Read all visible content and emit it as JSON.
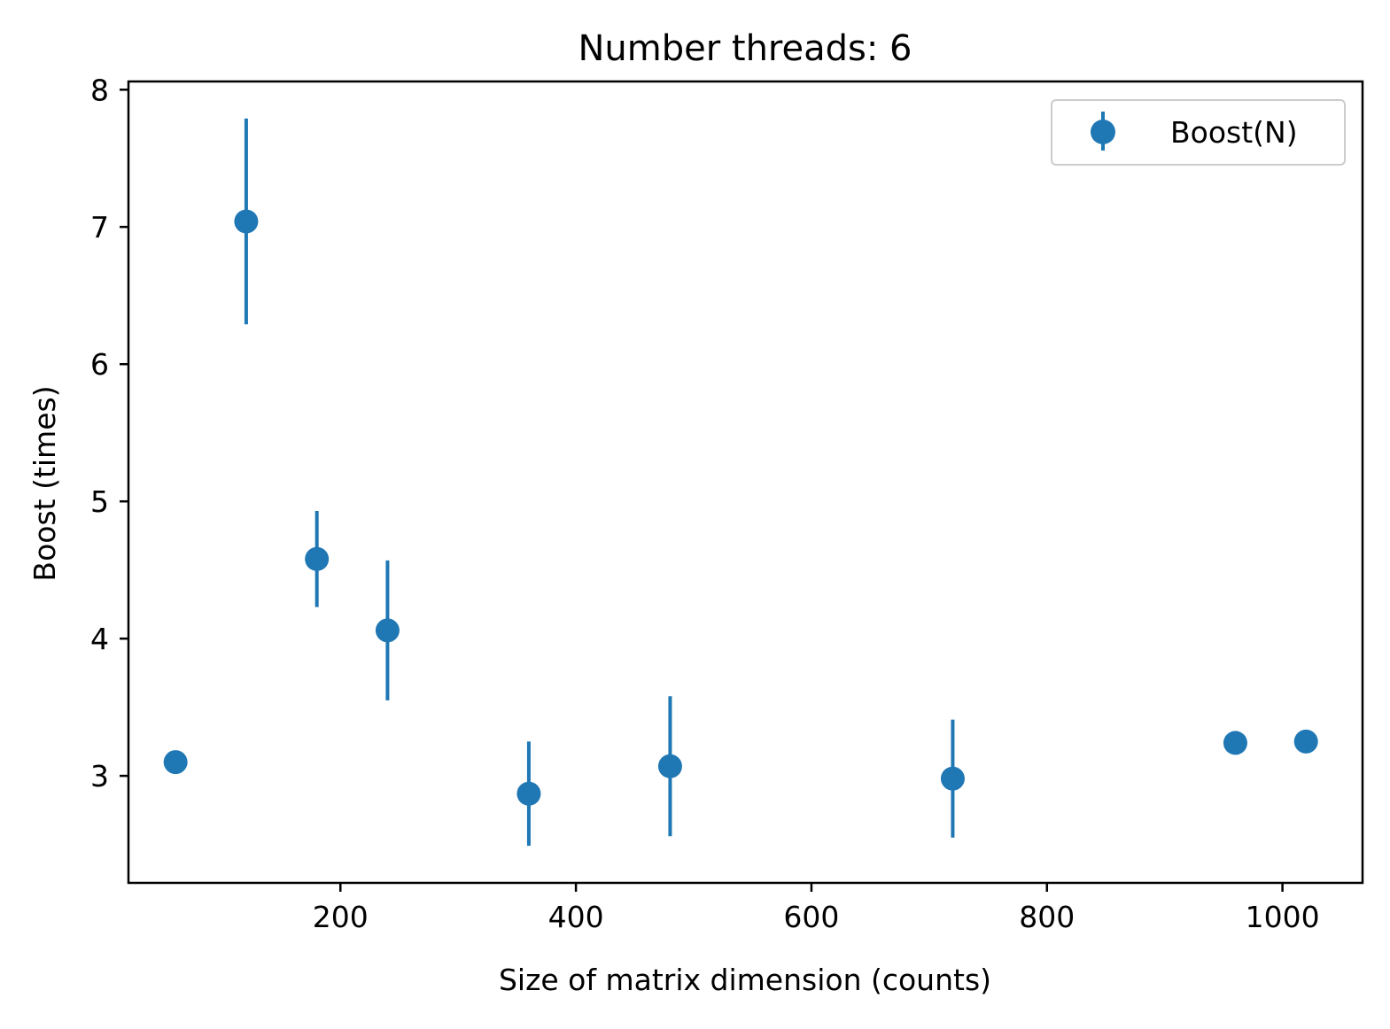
{
  "chart_data": {
    "type": "scatter",
    "title": "Number threads: 6",
    "xlabel": "Size of matrix dimension (counts)",
    "ylabel": "Boost (times)",
    "xlim": [
      20,
      1068
    ],
    "ylim": [
      2.22,
      8.06
    ],
    "xticks": [
      200,
      400,
      600,
      800,
      1000
    ],
    "yticks": [
      3,
      4,
      5,
      6,
      7,
      8
    ],
    "grid": false,
    "legend": {
      "position": "top-right",
      "entries": [
        "Boost(N)"
      ]
    },
    "series": [
      {
        "name": "Boost(N)",
        "color": "#1f77b4",
        "marker": "circle",
        "points": [
          {
            "x": 60,
            "y": 3.1,
            "err": 0
          },
          {
            "x": 120,
            "y": 7.04,
            "err": 0.75
          },
          {
            "x": 180,
            "y": 4.58,
            "err": 0.35
          },
          {
            "x": 240,
            "y": 4.06,
            "err": 0.51
          },
          {
            "x": 360,
            "y": 2.87,
            "err": 0.38
          },
          {
            "x": 480,
            "y": 3.07,
            "err": 0.51
          },
          {
            "x": 720,
            "y": 2.98,
            "err": 0.43
          },
          {
            "x": 960,
            "y": 3.24,
            "err": 0
          },
          {
            "x": 1020,
            "y": 3.25,
            "err": 0
          }
        ]
      }
    ]
  }
}
